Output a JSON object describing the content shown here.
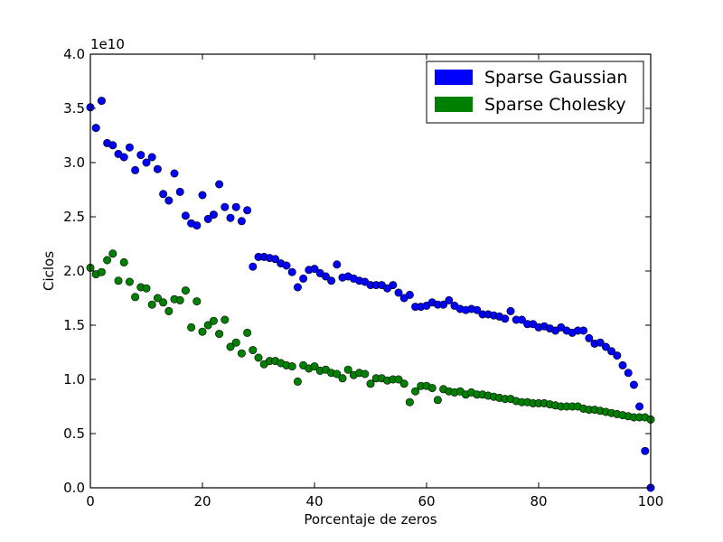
{
  "chart_data": {
    "type": "scatter",
    "xlabel": "Porcentaje de zeros",
    "ylabel": "Ciclos",
    "y_offset_label": "1e10",
    "xlim": [
      0,
      100
    ],
    "ylim": [
      0.0,
      4.0
    ],
    "y_scale_factor": 10000000000.0,
    "x_ticks": [
      "0",
      "20",
      "40",
      "60",
      "80",
      "100"
    ],
    "y_ticks": [
      "0.0",
      "0.5",
      "1.0",
      "1.5",
      "2.0",
      "2.5",
      "3.0",
      "3.5",
      "4.0"
    ],
    "grid": false,
    "legend_position": "top-right",
    "series": [
      {
        "name": "Sparse Gaussian",
        "color": "#0000ff",
        "x": [
          0,
          1,
          2,
          3,
          4,
          5,
          6,
          7,
          8,
          9,
          10,
          11,
          12,
          13,
          14,
          15,
          16,
          17,
          18,
          19,
          20,
          21,
          22,
          23,
          24,
          25,
          26,
          27,
          28,
          29,
          30,
          31,
          32,
          33,
          34,
          35,
          36,
          37,
          38,
          39,
          40,
          41,
          42,
          43,
          44,
          45,
          46,
          47,
          48,
          49,
          50,
          51,
          52,
          53,
          54,
          55,
          56,
          57,
          58,
          59,
          60,
          61,
          62,
          63,
          64,
          65,
          66,
          67,
          68,
          69,
          70,
          71,
          72,
          73,
          74,
          75,
          76,
          77,
          78,
          79,
          80,
          81,
          82,
          83,
          84,
          85,
          86,
          87,
          88,
          89,
          90,
          91,
          92,
          93,
          94,
          95,
          96,
          97,
          98,
          99,
          100
        ],
        "y": [
          3.51,
          3.32,
          3.57,
          3.18,
          3.16,
          3.08,
          3.05,
          3.14,
          2.93,
          3.07,
          3.0,
          3.05,
          2.94,
          2.71,
          2.65,
          2.9,
          2.73,
          2.51,
          2.44,
          2.42,
          2.7,
          2.48,
          2.52,
          2.8,
          2.59,
          2.49,
          2.59,
          2.46,
          2.56,
          2.04,
          2.13,
          2.13,
          2.12,
          2.11,
          2.07,
          2.05,
          1.99,
          1.85,
          1.93,
          2.01,
          2.02,
          1.98,
          1.95,
          1.91,
          2.06,
          1.94,
          1.95,
          1.93,
          1.91,
          1.9,
          1.87,
          1.87,
          1.87,
          1.84,
          1.87,
          1.8,
          1.75,
          1.78,
          1.67,
          1.67,
          1.68,
          1.71,
          1.69,
          1.69,
          1.73,
          1.68,
          1.65,
          1.64,
          1.65,
          1.64,
          1.6,
          1.6,
          1.59,
          1.58,
          1.56,
          1.63,
          1.55,
          1.55,
          1.51,
          1.51,
          1.48,
          1.49,
          1.47,
          1.45,
          1.48,
          1.45,
          1.43,
          1.45,
          1.45,
          1.38,
          1.33,
          1.34,
          1.3,
          1.26,
          1.22,
          1.13,
          1.06,
          0.95,
          0.75,
          0.34,
          0.0
        ]
      },
      {
        "name": "Sparse Cholesky",
        "color": "#008000",
        "x": [
          0,
          1,
          2,
          3,
          4,
          5,
          6,
          7,
          8,
          9,
          10,
          11,
          12,
          13,
          14,
          15,
          16,
          17,
          18,
          19,
          20,
          21,
          22,
          23,
          24,
          25,
          26,
          27,
          28,
          29,
          30,
          31,
          32,
          33,
          34,
          35,
          36,
          37,
          38,
          39,
          40,
          41,
          42,
          43,
          44,
          45,
          46,
          47,
          48,
          49,
          50,
          51,
          52,
          53,
          54,
          55,
          56,
          57,
          58,
          59,
          60,
          61,
          62,
          63,
          64,
          65,
          66,
          67,
          68,
          69,
          70,
          71,
          72,
          73,
          74,
          75,
          76,
          77,
          78,
          79,
          80,
          81,
          82,
          83,
          84,
          85,
          86,
          87,
          88,
          89,
          90,
          91,
          92,
          93,
          94,
          95,
          96,
          97,
          98,
          99,
          100
        ],
        "y": [
          2.03,
          1.97,
          1.99,
          2.1,
          2.16,
          1.91,
          2.08,
          1.9,
          1.76,
          1.85,
          1.84,
          1.69,
          1.75,
          1.71,
          1.63,
          1.74,
          1.73,
          1.82,
          1.48,
          1.72,
          1.44,
          1.5,
          1.54,
          1.42,
          1.55,
          1.3,
          1.34,
          1.24,
          1.43,
          1.27,
          1.2,
          1.14,
          1.17,
          1.17,
          1.15,
          1.13,
          1.12,
          0.98,
          1.13,
          1.1,
          1.12,
          1.08,
          1.09,
          1.06,
          1.05,
          1.01,
          1.09,
          1.04,
          1.06,
          1.05,
          0.96,
          1.01,
          1.01,
          0.99,
          1.0,
          1.0,
          0.96,
          0.79,
          0.89,
          0.94,
          0.94,
          0.92,
          0.81,
          0.91,
          0.89,
          0.88,
          0.89,
          0.86,
          0.88,
          0.86,
          0.86,
          0.85,
          0.84,
          0.83,
          0.82,
          0.82,
          0.8,
          0.79,
          0.79,
          0.78,
          0.78,
          0.78,
          0.77,
          0.76,
          0.75,
          0.75,
          0.75,
          0.75,
          0.73,
          0.72,
          0.72,
          0.71,
          0.7,
          0.69,
          0.68,
          0.67,
          0.66,
          0.65,
          0.65,
          0.65,
          0.63
        ]
      }
    ]
  }
}
